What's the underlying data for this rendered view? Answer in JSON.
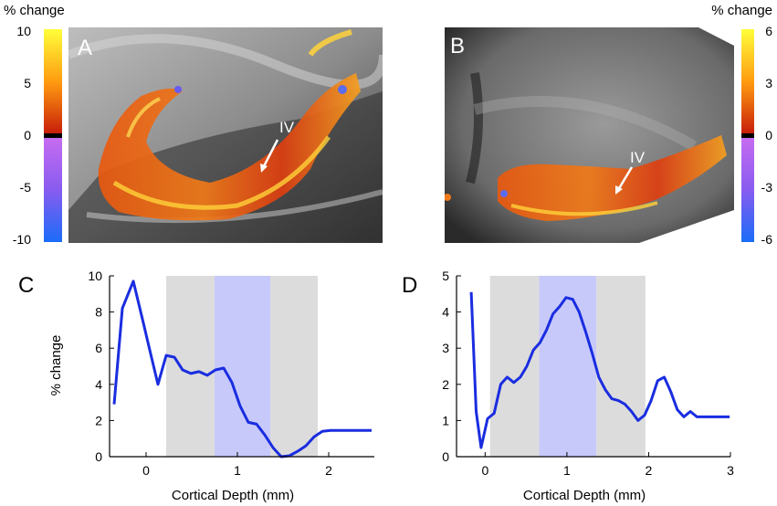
{
  "colors": {
    "line": "#1a2de0",
    "gray_band": "#dcdcdc",
    "blue_band": "#c7c9fb",
    "annotation": "#ffffff"
  },
  "panels": {
    "A": {
      "label": "A",
      "annotation": "IV"
    },
    "B": {
      "label": "B",
      "annotation": "IV"
    },
    "C": {
      "label": "C"
    },
    "D": {
      "label": "D"
    }
  },
  "colorbars": {
    "left": {
      "title": "% change",
      "ticks": [
        "10",
        "5",
        "0",
        "-5",
        "-10"
      ]
    },
    "right": {
      "title": "% change",
      "ticks": [
        "6",
        "3",
        "0",
        "-3",
        "-6"
      ]
    }
  },
  "chart_data": [
    {
      "panel": "C",
      "type": "line",
      "xlabel": "Cortical Depth (mm)",
      "ylabel": "% change",
      "xlim": [
        -0.4,
        2.5
      ],
      "ylim": [
        0,
        10
      ],
      "xticks": [
        0,
        1,
        2
      ],
      "yticks": [
        0,
        2,
        4,
        6,
        8,
        10
      ],
      "bands": [
        {
          "kind": "gray",
          "x0": 0.22,
          "x1": 0.75
        },
        {
          "kind": "blue",
          "x0": 0.75,
          "x1": 1.36
        },
        {
          "kind": "gray",
          "x0": 1.36,
          "x1": 1.88
        }
      ],
      "series": [
        {
          "name": "% change",
          "x": [
            -0.35,
            -0.26,
            -0.14,
            -0.03,
            0.04,
            0.13,
            0.22,
            0.31,
            0.4,
            0.49,
            0.58,
            0.67,
            0.76,
            0.85,
            0.94,
            1.03,
            1.12,
            1.21,
            1.3,
            1.39,
            1.48,
            1.57,
            1.66,
            1.75,
            1.84,
            1.93,
            2.02,
            2.11,
            2.2,
            2.29,
            2.38,
            2.47
          ],
          "y": [
            2.9,
            8.2,
            9.7,
            7.4,
            5.9,
            4.0,
            5.6,
            5.5,
            4.8,
            4.6,
            4.7,
            4.5,
            4.8,
            4.9,
            4.1,
            2.8,
            1.9,
            1.8,
            1.2,
            0.5,
            0.0,
            0.05,
            0.3,
            0.6,
            1.1,
            1.4,
            1.45,
            1.45,
            1.45,
            1.45,
            1.45,
            1.45
          ]
        }
      ]
    },
    {
      "panel": "D",
      "type": "line",
      "xlabel": "Cortical Depth (mm)",
      "ylabel": "",
      "xlim": [
        -0.35,
        3
      ],
      "ylim": [
        0,
        5
      ],
      "xticks": [
        0,
        1,
        2,
        3
      ],
      "yticks": [
        0,
        1,
        2,
        3,
        4,
        5
      ],
      "bands": [
        {
          "kind": "gray",
          "x0": 0.06,
          "x1": 0.66
        },
        {
          "kind": "blue",
          "x0": 0.66,
          "x1": 1.36
        },
        {
          "kind": "gray",
          "x0": 1.36,
          "x1": 1.96
        }
      ],
      "series": [
        {
          "name": "% change",
          "x": [
            -0.17,
            -0.11,
            -0.05,
            0.03,
            0.11,
            0.19,
            0.27,
            0.35,
            0.43,
            0.51,
            0.59,
            0.67,
            0.75,
            0.83,
            0.91,
            0.99,
            1.07,
            1.15,
            1.23,
            1.31,
            1.39,
            1.47,
            1.55,
            1.63,
            1.71,
            1.79,
            1.87,
            1.95,
            2.03,
            2.11,
            2.19,
            2.27,
            2.35,
            2.43,
            2.51,
            2.59,
            2.67,
            2.75,
            2.83,
            2.91,
            2.99
          ],
          "y": [
            4.55,
            1.25,
            0.25,
            1.05,
            1.2,
            2.0,
            2.2,
            2.05,
            2.2,
            2.5,
            2.95,
            3.15,
            3.5,
            3.95,
            4.15,
            4.4,
            4.35,
            4.0,
            3.45,
            2.85,
            2.2,
            1.85,
            1.6,
            1.55,
            1.45,
            1.25,
            1.0,
            1.15,
            1.55,
            2.1,
            2.2,
            1.8,
            1.3,
            1.1,
            1.25,
            1.1,
            1.1,
            1.1,
            1.1,
            1.1,
            1.1
          ]
        }
      ]
    }
  ]
}
